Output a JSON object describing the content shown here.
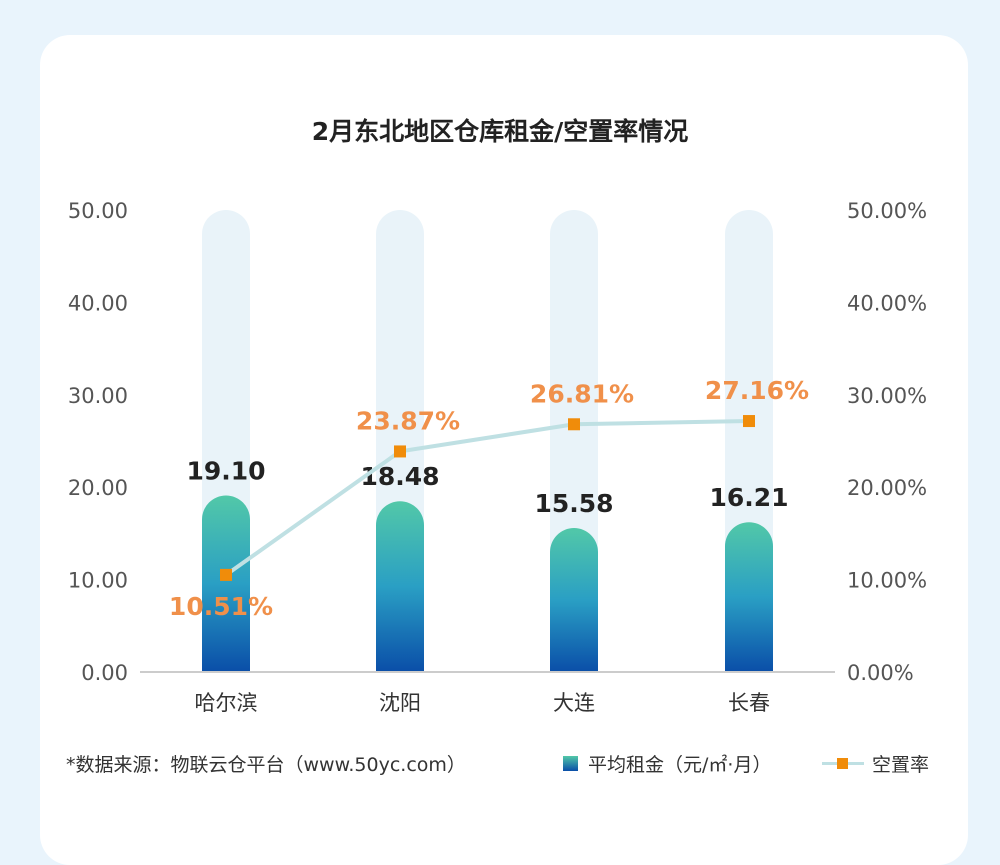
{
  "chart_data": {
    "type": "bar+line",
    "title": "2月东北地区仓库租金/空置率情况",
    "categories": [
      "哈尔滨",
      "沈阳",
      "大连",
      "长春"
    ],
    "series": [
      {
        "name": "平均租金（元/㎡·月）",
        "type": "bar",
        "axis": "left",
        "values": [
          19.1,
          18.48,
          15.58,
          16.21
        ],
        "labels": [
          "19.10",
          "18.48",
          "15.58",
          "16.21"
        ]
      },
      {
        "name": "空置率",
        "type": "line",
        "axis": "right",
        "values": [
          10.51,
          23.87,
          26.81,
          27.16
        ],
        "labels": [
          "10.51%",
          "23.87%",
          "26.81%",
          "27.16%"
        ]
      }
    ],
    "left_axis": {
      "ylim": [
        0,
        50
      ],
      "ticks": [
        "0.00",
        "10.00",
        "20.00",
        "30.00",
        "40.00",
        "50.00"
      ]
    },
    "right_axis": {
      "ylim": [
        0,
        50
      ],
      "ticks": [
        "0.00%",
        "10.00%",
        "20.00%",
        "30.00%",
        "40.00%",
        "50.00%"
      ]
    },
    "legend": "bottom-right",
    "colors": {
      "bar_top": "#52c8a8",
      "bar_bottom": "#0a4ea8",
      "bar_bg": "#e9f3f9",
      "line": "#bfe0e3",
      "marker": "#f08c0a",
      "line_label": "#f0904a"
    }
  },
  "source": "*数据来源：物联云仓平台（www.50yc.com）"
}
